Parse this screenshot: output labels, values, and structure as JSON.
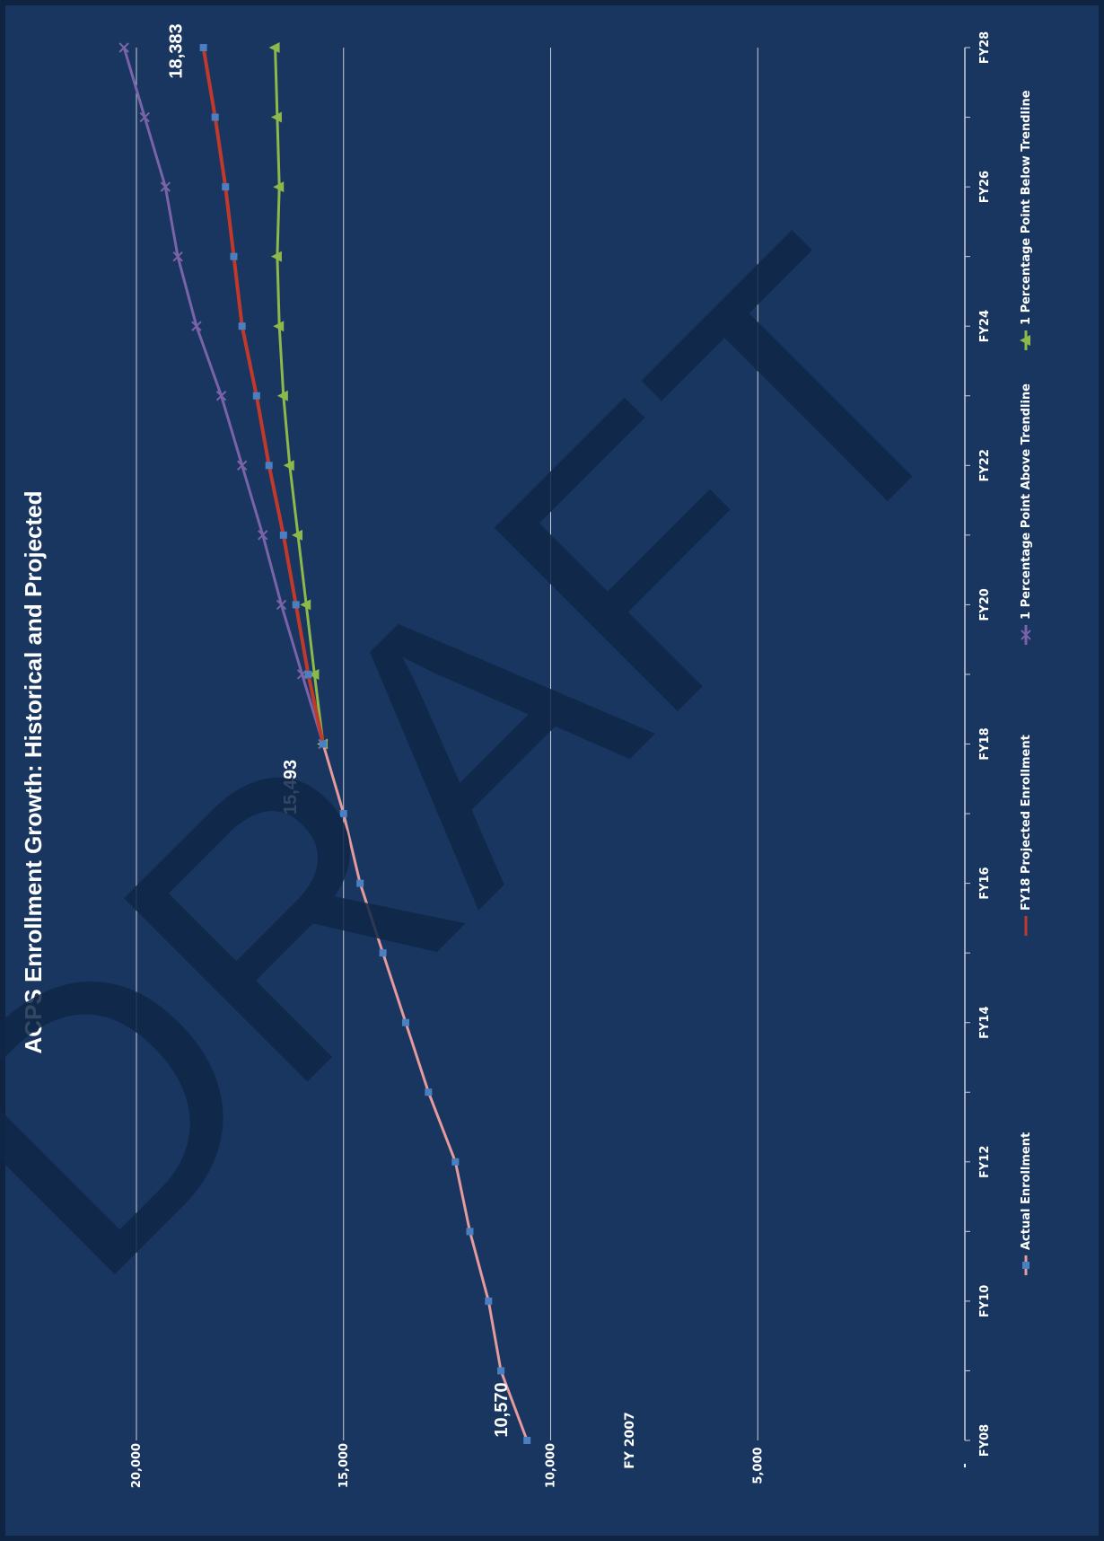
{
  "colors": {
    "background": "#183660",
    "border": "#0f2442",
    "gridline": "#c9ced8",
    "text": "#ffffff",
    "watermark": "#0f2747",
    "actual_line": "#e59a9c",
    "actual_marker": "#4a7fc1",
    "projected": "#c0392b",
    "above": "#7a63a8",
    "below": "#8cb94a"
  },
  "watermark": "DRAFT",
  "chart_data": {
    "type": "line",
    "orientation": "rotated-90-ccw",
    "title": "ACPS Enrollment Growth:  Historical and Projected",
    "xlabel": "",
    "ylabel": "",
    "x_categories": [
      "FY08",
      "FY09",
      "FY10",
      "FY11",
      "FY12",
      "FY13",
      "FY14",
      "FY15",
      "FY16",
      "FY17",
      "FY18",
      "FY19",
      "FY20",
      "FY21",
      "FY22",
      "FY23",
      "FY24",
      "FY25",
      "FY26",
      "FY27",
      "FY28"
    ],
    "x_tick_labels": [
      "FY08",
      "FY10",
      "FY12",
      "FY14",
      "FY16",
      "FY18",
      "FY20",
      "FY22",
      "FY24",
      "FY26",
      "FY28"
    ],
    "ylim": [
      0,
      20000
    ],
    "y_ticks": [
      0,
      5000,
      10000,
      15000,
      20000
    ],
    "y_tick_labels": [
      "-",
      "5,000",
      "10,000",
      "15,000",
      "20,000"
    ],
    "grid": true,
    "legend_position": "bottom",
    "series": [
      {
        "name": "Actual Enrollment",
        "x": [
          "FY08",
          "FY09",
          "FY10",
          "FY11",
          "FY12",
          "FY13",
          "FY14",
          "FY15",
          "FY16",
          "FY17",
          "FY18"
        ],
        "values": [
          10570,
          11200,
          11500,
          11950,
          12300,
          12950,
          13500,
          14050,
          14600,
          15000,
          15493
        ],
        "color_key": "actual_line",
        "marker": "square"
      },
      {
        "name": "FY18 Projected Enrollment",
        "x": [
          "FY18",
          "FY19",
          "FY20",
          "FY21",
          "FY22",
          "FY23",
          "FY24",
          "FY25",
          "FY26",
          "FY27",
          "FY28"
        ],
        "values": [
          15493,
          15850,
          16150,
          16450,
          16800,
          17100,
          17450,
          17650,
          17850,
          18100,
          18383
        ],
        "color_key": "projected",
        "marker": "square"
      },
      {
        "name": "1 Percentage Point Above Trendline",
        "x": [
          "FY18",
          "FY19",
          "FY20",
          "FY21",
          "FY22",
          "FY23",
          "FY24",
          "FY25",
          "FY26",
          "FY27",
          "FY28"
        ],
        "values": [
          15493,
          16000,
          16500,
          16950,
          17450,
          17950,
          18550,
          19000,
          19300,
          19800,
          20300
        ],
        "color_key": "above",
        "marker": "x"
      },
      {
        "name": "1 Percentage Point Below Trendline",
        "x": [
          "FY18",
          "FY19",
          "FY20",
          "FY21",
          "FY22",
          "FY23",
          "FY24",
          "FY25",
          "FY26",
          "FY27",
          "FY28"
        ],
        "values": [
          15493,
          15700,
          15900,
          16100,
          16300,
          16450,
          16550,
          16600,
          16550,
          16600,
          16650
        ],
        "color_key": "below",
        "marker": "triangle"
      }
    ],
    "annotations": [
      {
        "text": "10,570",
        "x": "FY08",
        "y": 10570
      },
      {
        "text": "15,493",
        "x": "FY18",
        "y": 15493
      },
      {
        "text": "18,383",
        "x": "FY28",
        "y": 18383
      },
      {
        "text": "FY 2007",
        "x": "FY08",
        "y": 7500
      }
    ]
  }
}
